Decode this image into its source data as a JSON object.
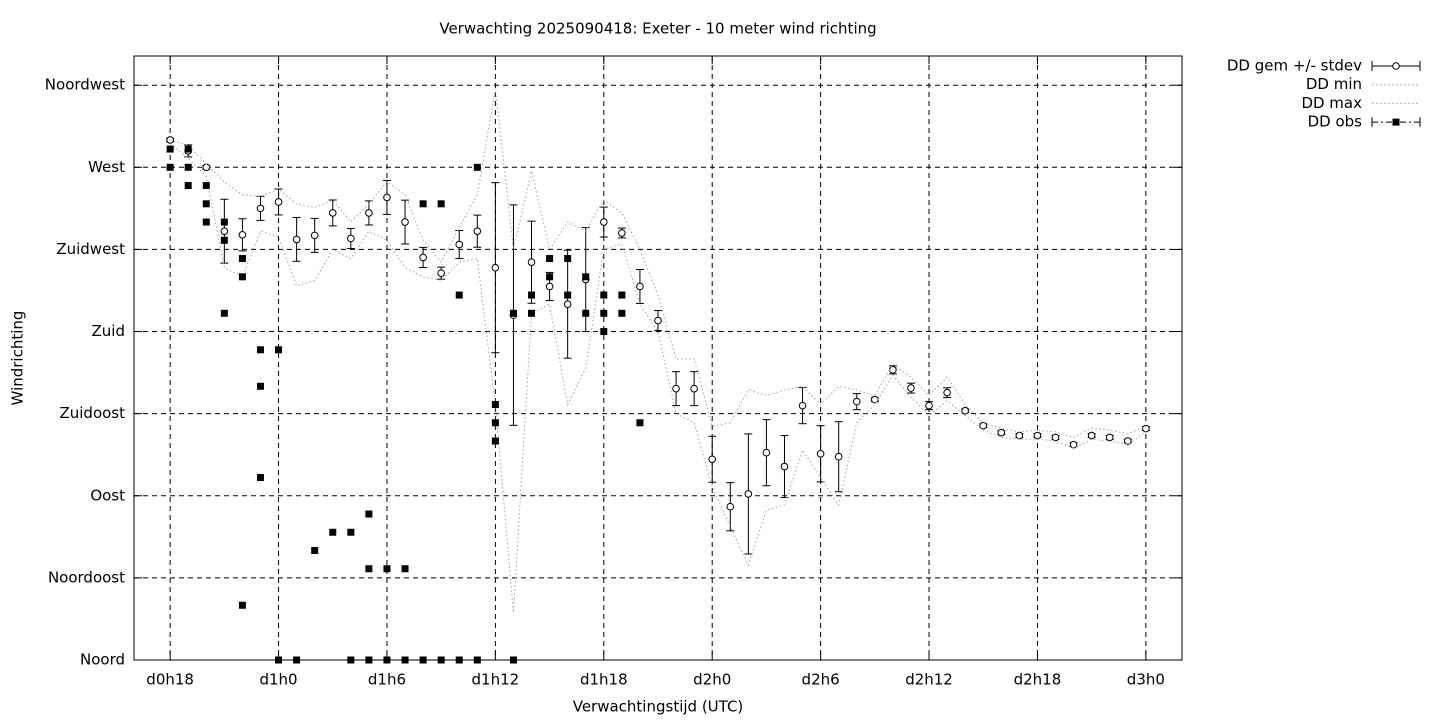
{
  "chart_data": {
    "type": "line",
    "title": "Verwachting 2025090418: Exeter - 10 meter wind richting",
    "x_label": "Verwachtingstijd (UTC)",
    "y_label": "Windrichting",
    "xlim": [
      16,
      74
    ],
    "ylim": [
      0,
      331
    ],
    "xticks": [
      {
        "value": 18,
        "label": "d0h18"
      },
      {
        "value": 24,
        "label": "d1h0"
      },
      {
        "value": 30,
        "label": "d1h6"
      },
      {
        "value": 36,
        "label": "d1h12"
      },
      {
        "value": 42,
        "label": "d1h18"
      },
      {
        "value": 48,
        "label": "d2h0"
      },
      {
        "value": 54,
        "label": "d2h6"
      },
      {
        "value": 60,
        "label": "d2h12"
      },
      {
        "value": 66,
        "label": "d2h18"
      },
      {
        "value": 72,
        "label": "d3h0"
      }
    ],
    "yticks": [
      {
        "value": 0,
        "label": "Noord"
      },
      {
        "value": 45,
        "label": "Noordoost"
      },
      {
        "value": 90,
        "label": "Oost"
      },
      {
        "value": 135,
        "label": "Zuidoost"
      },
      {
        "value": 180,
        "label": "Zuid"
      },
      {
        "value": 225,
        "label": "Zuidwest"
      },
      {
        "value": 270,
        "label": "West"
      },
      {
        "value": 315,
        "label": "Noordwest"
      }
    ],
    "grid": true,
    "legend": "outside-top-right",
    "series": [
      {
        "name": "DD gem +/- stdev",
        "color": "#000000",
        "style": "errorbar",
        "x": [
          18,
          19,
          20,
          21,
          22,
          23,
          24,
          25,
          26,
          27,
          28,
          29,
          30,
          31,
          32,
          33,
          34,
          35,
          36,
          37,
          38,
          39,
          40,
          41,
          42,
          43,
          44,
          45,
          46,
          47,
          48,
          49,
          50,
          51,
          52,
          53,
          54,
          55,
          56,
          57,
          58,
          59,
          60,
          61,
          62,
          63,
          64,
          65,
          66,
          67,
          68,
          69,
          70,
          71,
          72
        ],
        "values": [
          285,
          279,
          270,
          235,
          233,
          247.5,
          251,
          230.5,
          232.7,
          245,
          231,
          245,
          253.5,
          240,
          220.6,
          212,
          227.7,
          235,
          215,
          189,
          218,
          204.7,
          195,
          208.5,
          240,
          234,
          204.7,
          186,
          148.7,
          148.7,
          110,
          84,
          91,
          113.6,
          106,
          139.4,
          113,
          111.4,
          141.6,
          142.7,
          159,
          149,
          139.4,
          146.5,
          136.6,
          128.4,
          124.6,
          123,
          123,
          122,
          118,
          123,
          122,
          120,
          126.8
        ],
        "errors": [
          1,
          3.3,
          1,
          17.5,
          8.8,
          6.6,
          7.1,
          12,
          9.3,
          7.1,
          5.5,
          6.6,
          9.3,
          12,
          5.5,
          3.3,
          7.7,
          8.8,
          46.6,
          60.4,
          22.5,
          7.7,
          29.6,
          28.5,
          8.2,
          2.7,
          9.3,
          5.5,
          9.3,
          9.3,
          12.6,
          13.2,
          32.9,
          18.1,
          17,
          9.9,
          15.4,
          19.2,
          4.4,
          1,
          2.2,
          2.7,
          2.2,
          2.7,
          1,
          1,
          1,
          1,
          1,
          1,
          1,
          1,
          1,
          1,
          1
        ]
      },
      {
        "name": "DD min",
        "color": "#a0a0a0",
        "style": "dotted",
        "x": [
          18,
          19,
          20,
          21,
          22,
          23,
          24,
          25,
          26,
          27,
          28,
          29,
          30,
          31,
          32,
          33,
          34,
          35,
          36,
          37,
          38,
          39,
          40,
          41,
          42,
          43,
          44,
          45,
          46,
          47,
          48,
          49,
          50,
          51,
          52,
          53,
          54,
          55,
          56,
          57,
          58,
          59,
          60,
          61,
          62,
          63,
          64,
          65,
          66,
          67,
          68,
          69,
          70,
          71,
          72
        ],
        "values": [
          283,
          275,
          265,
          215,
          210,
          235,
          232,
          205,
          208,
          225,
          220,
          235,
          230,
          215,
          210,
          208,
          218,
          220,
          140,
          26,
          190,
          195,
          140,
          160,
          225,
          228,
          195,
          180,
          135,
          130,
          95,
          73,
          52,
          82,
          85,
          115,
          100,
          85,
          130,
          140,
          156,
          144,
          134,
          142,
          134,
          126,
          122,
          121,
          121,
          120,
          116,
          121,
          120,
          118,
          125
        ]
      },
      {
        "name": "DD max",
        "color": "#a0a0a0",
        "style": "dotted",
        "x": [
          18,
          19,
          20,
          21,
          22,
          23,
          24,
          25,
          26,
          27,
          28,
          29,
          30,
          31,
          32,
          33,
          34,
          35,
          36,
          37,
          38,
          39,
          40,
          41,
          42,
          43,
          44,
          45,
          46,
          47,
          48,
          49,
          50,
          51,
          52,
          53,
          54,
          55,
          56,
          57,
          58,
          59,
          60,
          61,
          62,
          63,
          64,
          65,
          66,
          67,
          68,
          69,
          70,
          71,
          72
        ],
        "values": [
          285,
          282,
          272,
          262,
          255,
          254,
          258,
          250,
          248,
          252,
          240,
          250,
          262,
          255,
          230,
          218,
          237,
          255,
          313,
          225,
          268,
          225,
          240,
          235,
          252,
          245,
          225,
          200,
          165,
          165,
          128,
          130,
          148,
          145,
          148,
          150,
          140,
          150,
          148,
          145,
          162,
          155,
          145,
          155,
          140,
          130,
          127,
          125,
          126,
          125,
          122,
          127,
          126,
          124,
          128
        ]
      },
      {
        "name": "DD obs",
        "color": "#000000",
        "style": "points",
        "x": [
          18,
          18,
          19,
          19,
          19,
          20,
          20,
          20,
          21,
          21,
          21,
          22,
          22,
          22,
          23,
          23,
          23,
          24,
          24,
          25,
          26,
          27,
          28,
          28,
          29,
          29,
          29,
          30,
          30,
          31,
          31,
          32,
          32,
          33,
          33,
          34,
          34,
          35,
          35,
          36,
          36,
          36,
          37,
          37,
          38,
          38,
          39,
          39,
          40,
          40,
          41,
          41,
          42,
          42,
          42,
          43,
          43,
          44
        ],
        "values": [
          280,
          270,
          280,
          270,
          260,
          260,
          250,
          240,
          240,
          230,
          190,
          220,
          210,
          30,
          170,
          150,
          100,
          170,
          0,
          0,
          60,
          70,
          70,
          0,
          80,
          50,
          0,
          50,
          0,
          50,
          0,
          250,
          0,
          250,
          0,
          200,
          0,
          270,
          0,
          140,
          130,
          120,
          190,
          0,
          200,
          190,
          220,
          210,
          220,
          200,
          210,
          190,
          200,
          190,
          180,
          200,
          190,
          130
        ]
      }
    ]
  }
}
